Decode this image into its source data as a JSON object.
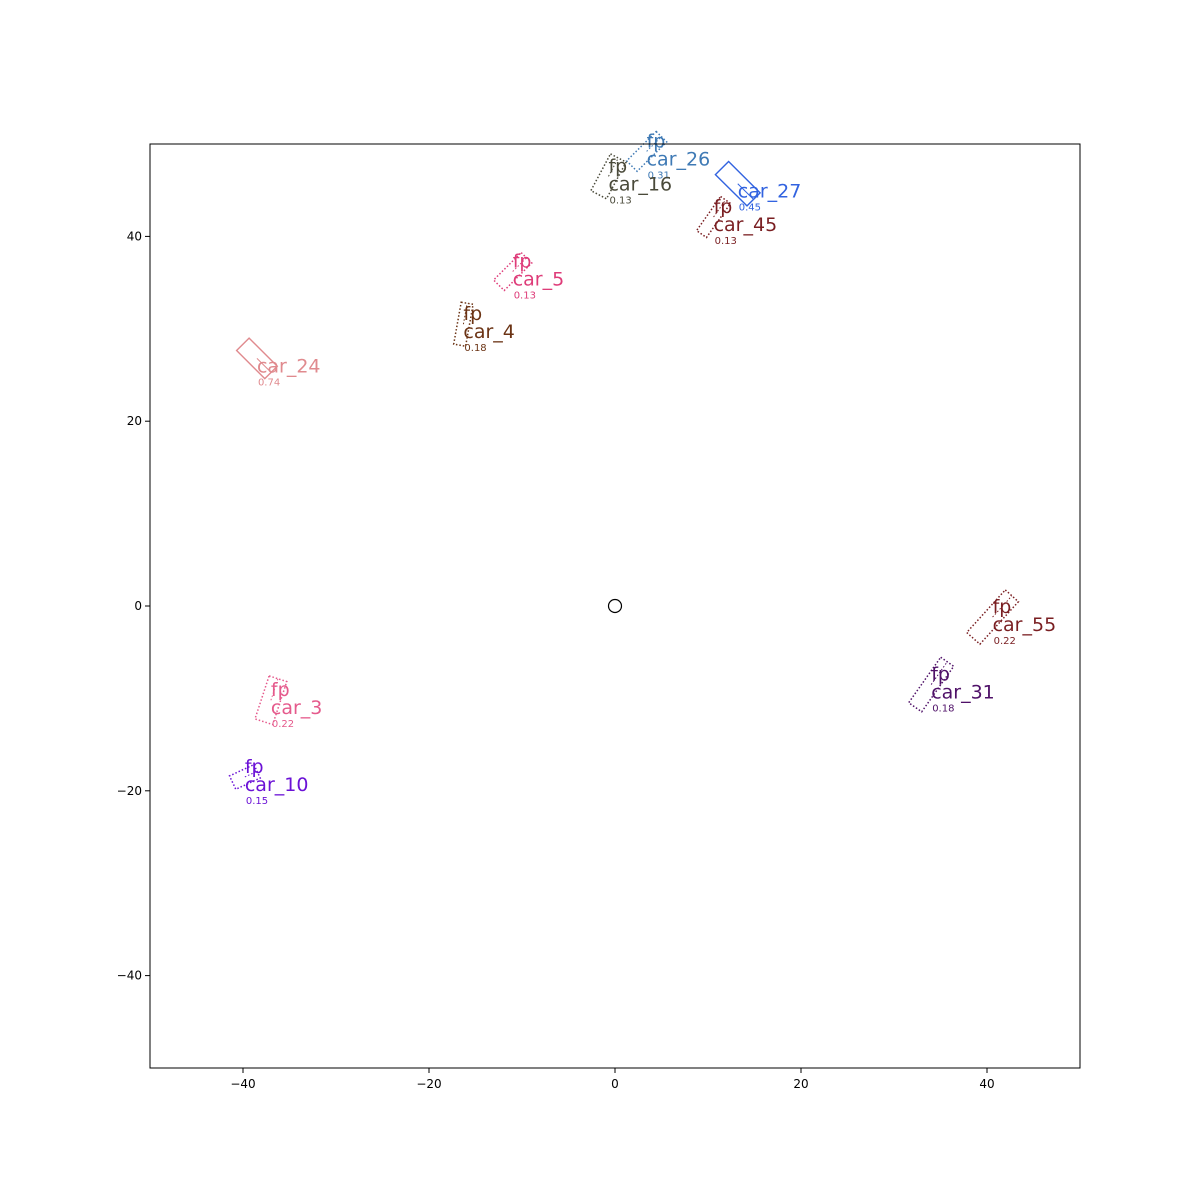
{
  "chart_data": {
    "type": "scatter",
    "title": "",
    "xlabel": "",
    "ylabel": "",
    "xlim": [
      -50,
      50
    ],
    "ylim": [
      -50,
      50
    ],
    "xticks": [
      -40,
      -20,
      0,
      20,
      40
    ],
    "yticks": [
      -40,
      -20,
      0,
      20,
      40
    ],
    "xtick_labels": [
      "−40",
      "−20",
      "0",
      "20",
      "40"
    ],
    "ytick_labels": [
      "−40",
      "−20",
      "0",
      "20",
      "40"
    ],
    "grid": false,
    "ego": {
      "x": 0,
      "y": 0,
      "marker": "circle"
    },
    "objects": [
      {
        "label": "car_26",
        "fp": "fp",
        "score": "0.31",
        "x": 3.4,
        "y": 49.2,
        "length": 4.5,
        "width": 1.6,
        "angle_deg": 45,
        "line": "dotted",
        "color": "#3f7ab5"
      },
      {
        "label": "car_16",
        "fp": "fp",
        "score": "0.13",
        "x": -0.7,
        "y": 46.5,
        "length": 4.5,
        "width": 1.9,
        "angle_deg": 62,
        "line": "dotted",
        "color": "#4a4a3a"
      },
      {
        "label": "car_27",
        "fp": "",
        "score": "0.45",
        "x": 13.2,
        "y": 45.7,
        "length": 4.8,
        "width": 2.0,
        "angle_deg": -45,
        "line": "solid",
        "color": "#3263e0"
      },
      {
        "label": "car_45",
        "fp": "fp",
        "score": "0.13",
        "x": 10.6,
        "y": 42.1,
        "length": 4.5,
        "width": 1.3,
        "angle_deg": 55,
        "line": "dotted",
        "color": "#7a1f22"
      },
      {
        "label": "car_5",
        "fp": "fp",
        "score": "0.13",
        "x": -11.0,
        "y": 36.2,
        "length": 4.2,
        "width": 1.6,
        "angle_deg": 45,
        "line": "dotted",
        "color": "#de3c79"
      },
      {
        "label": "car_4",
        "fp": "fp",
        "score": "0.18",
        "x": -16.3,
        "y": 30.5,
        "length": 4.6,
        "width": 1.3,
        "angle_deg": 80,
        "line": "dotted",
        "color": "#6b3314"
      },
      {
        "label": "car_24",
        "fp": "",
        "score": "0.74",
        "x": -38.5,
        "y": 26.8,
        "length": 4.3,
        "width": 1.9,
        "angle_deg": -45,
        "line": "solid",
        "color": "#e08a8e"
      },
      {
        "label": "car_55",
        "fp": "fp",
        "score": "0.22",
        "x": 40.6,
        "y": -1.2,
        "length": 6.2,
        "width": 1.9,
        "angle_deg": 48,
        "line": "dotted",
        "color": "#7a1f22"
      },
      {
        "label": "car_31",
        "fp": "fp",
        "score": "0.18",
        "x": 34.0,
        "y": -8.5,
        "length": 6.0,
        "width": 1.7,
        "angle_deg": 55,
        "line": "dotted",
        "color": "#4f1168"
      },
      {
        "label": "car_3",
        "fp": "fp",
        "score": "0.22",
        "x": -37.0,
        "y": -10.2,
        "length": 4.9,
        "width": 2.0,
        "angle_deg": 72,
        "line": "dotted",
        "color": "#e55a8c"
      },
      {
        "label": "car_10",
        "fp": "fp",
        "score": "0.15",
        "x": -39.8,
        "y": -18.5,
        "length": 2.9,
        "width": 1.6,
        "angle_deg": 25,
        "line": "dotted",
        "color": "#6b12d6"
      }
    ]
  }
}
